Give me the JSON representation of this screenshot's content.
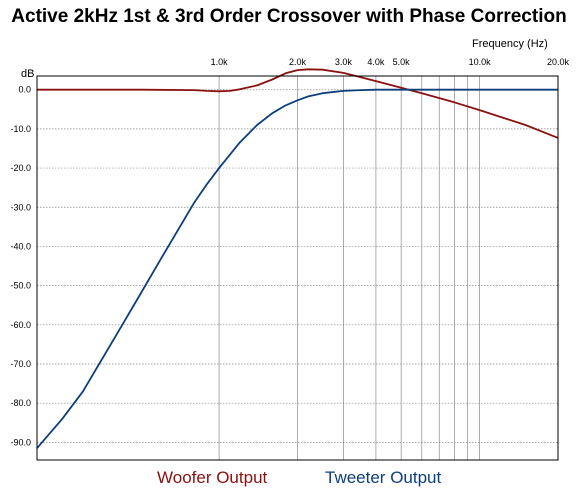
{
  "chart_data": {
    "type": "line",
    "title": "Active 2kHz 1st & 3rd Order Crossover with Phase Correction",
    "xlabel": "Frequency  (Hz)",
    "ylabel": "dB",
    "x_scale": "log",
    "xlim": [
      200,
      20000
    ],
    "ylim": [
      -92,
      5
    ],
    "grid": true,
    "x_ticks": [
      {
        "value": 1000,
        "label": "1.0k"
      },
      {
        "value": 2000,
        "label": "2.0k"
      },
      {
        "value": 3000,
        "label": "3.0k"
      },
      {
        "value": 4000,
        "label": "4.0k"
      },
      {
        "value": 5000,
        "label": "5.0k"
      },
      {
        "value": 10000,
        "label": "10.0k"
      },
      {
        "value": 20000,
        "label": "20.0k"
      }
    ],
    "x_minor_grid": [
      6000,
      7000,
      8000,
      9000
    ],
    "y_ticks": [
      {
        "value": 0,
        "label": "0.0"
      },
      {
        "value": -10,
        "label": "-10.0"
      },
      {
        "value": -20,
        "label": "-20.0"
      },
      {
        "value": -30,
        "label": "-30.0"
      },
      {
        "value": -40,
        "label": "-40.0"
      },
      {
        "value": -50,
        "label": "-50.0"
      },
      {
        "value": -60,
        "label": "-60.0"
      },
      {
        "value": -70,
        "label": "-70.0"
      },
      {
        "value": -80,
        "label": "-80.0"
      },
      {
        "value": -90,
        "label": "-90.0"
      }
    ],
    "legend_placement": "bottom-center",
    "series": [
      {
        "name": "Woofer Output",
        "color": "#8b1010",
        "x": [
          200,
          500,
          800,
          900,
          1000,
          1100,
          1200,
          1400,
          1600,
          1800,
          2000,
          2200,
          2500,
          3000,
          3500,
          4000,
          5000,
          6000,
          8000,
          10000,
          15000,
          20000
        ],
        "y": [
          0,
          0,
          -0.1,
          -0.3,
          -0.4,
          -0.3,
          0.1,
          1.1,
          2.6,
          4.2,
          5.0,
          5.2,
          5.1,
          4.3,
          3.2,
          2.2,
          0.5,
          -0.9,
          -3.2,
          -5.2,
          -9.0,
          -12.3
        ]
      },
      {
        "name": "Tweeter Output",
        "color": "#0d3f7a",
        "x": [
          200,
          250,
          300,
          400,
          500,
          600,
          700,
          800,
          900,
          1000,
          1200,
          1400,
          1600,
          1800,
          2000,
          2200,
          2500,
          3000,
          3500,
          4000,
          5000,
          7000,
          10000,
          20000
        ],
        "y": [
          -91.5,
          -84,
          -77,
          -63,
          -52,
          -43,
          -35.5,
          -29,
          -24,
          -20,
          -13.5,
          -9,
          -6,
          -4,
          -2.7,
          -1.7,
          -0.9,
          -0.3,
          -0.1,
          0,
          0,
          0,
          0,
          0
        ]
      }
    ]
  }
}
